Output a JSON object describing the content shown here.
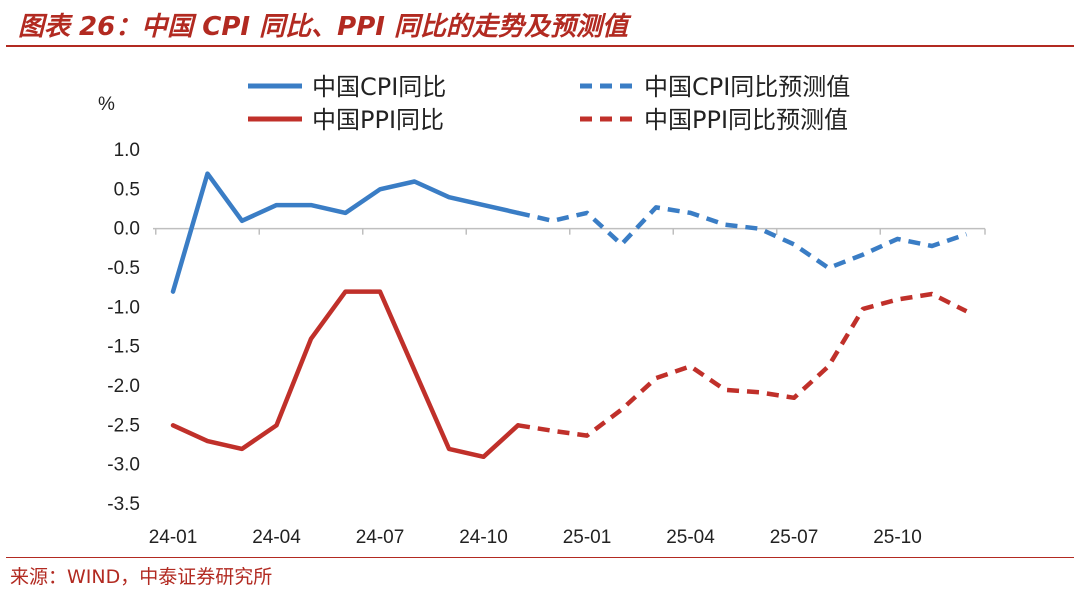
{
  "figure": {
    "title": "图表 26：中国 CPI 同比、PPI 同比的走势及预测值",
    "source": "来源：WIND，中泰证券研究所"
  },
  "chart_data": {
    "type": "line",
    "unit_label": "%",
    "ylim": [
      -3.5,
      1.0
    ],
    "y_ticks": [
      1.0,
      0.5,
      0.0,
      -0.5,
      -1.0,
      -1.5,
      -2.0,
      -2.5,
      -3.0,
      -3.5
    ],
    "y_tick_labels": [
      "1.0",
      "0.5",
      "0.0",
      "-0.5",
      "-1.0",
      "-1.5",
      "-2.0",
      "-2.5",
      "-3.0",
      "-3.5"
    ],
    "x_tick_labels": [
      "24-01",
      "24-04",
      "24-07",
      "24-10",
      "25-01",
      "25-04",
      "25-07",
      "25-10"
    ],
    "x_tick_label_months": [
      0,
      3,
      6,
      9,
      12,
      15,
      18,
      21
    ],
    "months": [
      "24-01",
      "24-02",
      "24-03",
      "24-04",
      "24-05",
      "24-06",
      "24-07",
      "24-08",
      "24-09",
      "24-10",
      "24-11",
      "24-12",
      "25-01",
      "25-02",
      "25-03",
      "25-04",
      "25-05",
      "25-06",
      "25-07",
      "25-08",
      "25-09",
      "25-10",
      "25-11",
      "25-12"
    ],
    "grid": false,
    "legend_position": "top",
    "series": [
      {
        "name": "中国CPI同比",
        "color": "#3a7dc5",
        "style": "solid",
        "values": [
          -0.8,
          0.7,
          0.1,
          0.3,
          0.3,
          0.2,
          0.5,
          0.6,
          0.4,
          0.3,
          0.2,
          null,
          null,
          null,
          null,
          null,
          null,
          null,
          null,
          null,
          null,
          null,
          null,
          null
        ]
      },
      {
        "name": "中国CPI同比预测值",
        "color": "#3a7dc5",
        "style": "dashed",
        "values": [
          null,
          null,
          null,
          null,
          null,
          null,
          null,
          null,
          null,
          null,
          0.2,
          0.1,
          0.2,
          -0.2,
          0.27,
          0.2,
          0.05,
          0.0,
          -0.2,
          -0.5,
          -0.33,
          -0.13,
          -0.22,
          -0.07
        ]
      },
      {
        "name": "中国PPI同比",
        "color": "#c0302a",
        "style": "solid",
        "values": [
          -2.5,
          -2.7,
          -2.8,
          -2.5,
          -1.4,
          -0.8,
          -0.8,
          -1.8,
          -2.8,
          -2.9,
          -2.5,
          null,
          null,
          null,
          null,
          null,
          null,
          null,
          null,
          null,
          null,
          null,
          null,
          null
        ]
      },
      {
        "name": "中国PPI同比预测值",
        "color": "#c0302a",
        "style": "dashed",
        "values": [
          null,
          null,
          null,
          null,
          null,
          null,
          null,
          null,
          null,
          null,
          -2.5,
          -2.57,
          -2.63,
          -2.3,
          -1.9,
          -1.75,
          -2.05,
          -2.08,
          -2.15,
          -1.75,
          -1.02,
          -0.9,
          -0.83,
          -1.05
        ]
      }
    ]
  }
}
